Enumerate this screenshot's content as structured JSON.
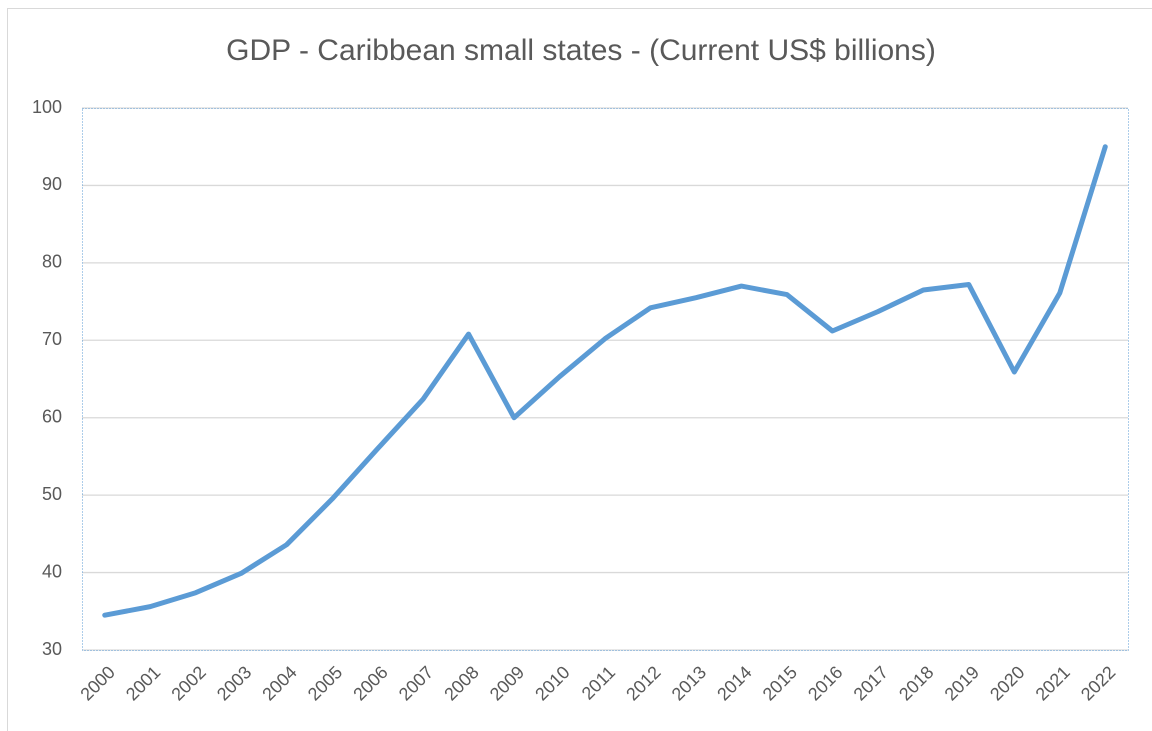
{
  "chart_data": {
    "type": "line",
    "title": "GDP - Caribbean small states - (Current US$ billions)",
    "categories": [
      "2000",
      "2001",
      "2002",
      "2003",
      "2004",
      "2005",
      "2006",
      "2007",
      "2008",
      "2009",
      "2010",
      "2011",
      "2012",
      "2013",
      "2014",
      "2015",
      "2016",
      "2017",
      "2018",
      "2019",
      "2020",
      "2021",
      "2022"
    ],
    "series": [
      {
        "name": "GDP",
        "color": "#5b9bd5",
        "values": [
          34.5,
          35.6,
          37.4,
          39.9,
          43.6,
          49.5,
          56.0,
          62.4,
          70.8,
          60.0,
          65.3,
          70.2,
          74.2,
          75.5,
          77.0,
          75.9,
          71.2,
          73.7,
          76.5,
          77.2,
          65.9,
          76.1,
          95.0
        ]
      }
    ],
    "ylim": [
      30,
      100
    ],
    "yticks": [
      30,
      40,
      50,
      60,
      70,
      80,
      90,
      100
    ],
    "grid": true
  }
}
